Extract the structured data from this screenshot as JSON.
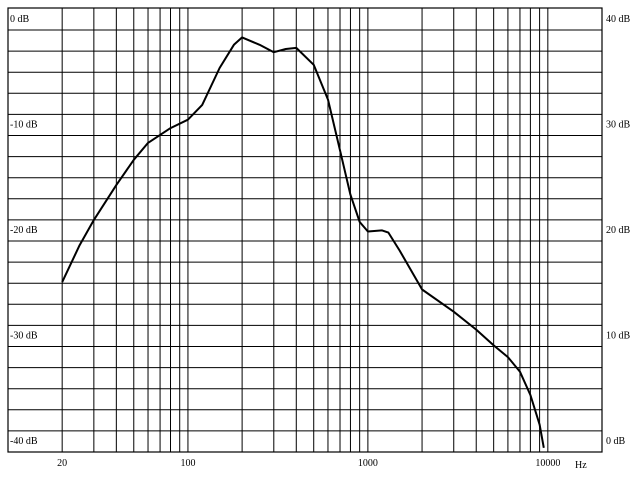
{
  "chart_data": {
    "type": "line",
    "x": [
      20,
      25,
      30,
      40,
      50,
      60,
      80,
      100,
      120,
      150,
      180,
      200,
      250,
      300,
      350,
      400,
      500,
      600,
      700,
      800,
      900,
      1000,
      1200,
      1300,
      1500,
      2000,
      3000,
      4000,
      5000,
      6000,
      7000,
      8000,
      9000,
      9500
    ],
    "values": [
      -23.9,
      -20.4,
      -18,
      -14.7,
      -12.3,
      -10.7,
      -9.3,
      -8.5,
      -7.1,
      -3.6,
      -1.4,
      -0.7,
      -1.4,
      -2.1,
      -1.8,
      -1.7,
      -3.3,
      -6.6,
      -11.4,
      -15.6,
      -18.2,
      -19.1,
      -19,
      -19.2,
      -20.9,
      -24.6,
      -26.7,
      -28.4,
      -29.9,
      -31,
      -32.4,
      -34.6,
      -37.4,
      -39.6
    ],
    "color": "#000000",
    "xlog": true,
    "xlim": [
      10,
      20000
    ],
    "xticks": [
      20,
      100,
      1000,
      10000
    ],
    "xlabel": "Hz",
    "ylim": [
      -40,
      0
    ],
    "yticks": [
      {
        "value": 0,
        "label": "0 dB"
      },
      {
        "value": -10,
        "label": "-10 dB"
      },
      {
        "value": -20,
        "label": "-20 dB"
      },
      {
        "value": -30,
        "label": "-30 dB"
      },
      {
        "value": -40,
        "label": "-40 dB"
      }
    ],
    "y2lim": [
      0,
      40
    ],
    "y2ticks": [
      {
        "value": 40,
        "label": "40 dB"
      },
      {
        "value": 30,
        "label": "30 dB"
      },
      {
        "value": 20,
        "label": "20 dB"
      },
      {
        "value": 10,
        "label": "10 dB"
      },
      {
        "value": 0,
        "label": "0 dB"
      }
    ],
    "grid": true,
    "xgrid": [
      10,
      20,
      30,
      40,
      50,
      60,
      70,
      80,
      90,
      100,
      200,
      300,
      400,
      500,
      600,
      700,
      800,
      900,
      1000,
      2000,
      3000,
      4000,
      5000,
      6000,
      7000,
      8000,
      9000,
      10000,
      20000
    ],
    "ygrid": [
      0,
      -2,
      -4,
      -6,
      -8,
      -10,
      -12,
      -14,
      -16,
      -18,
      -20,
      -22,
      -24,
      -26,
      -28,
      -30,
      -32,
      -34,
      -36,
      -38,
      -40
    ]
  }
}
